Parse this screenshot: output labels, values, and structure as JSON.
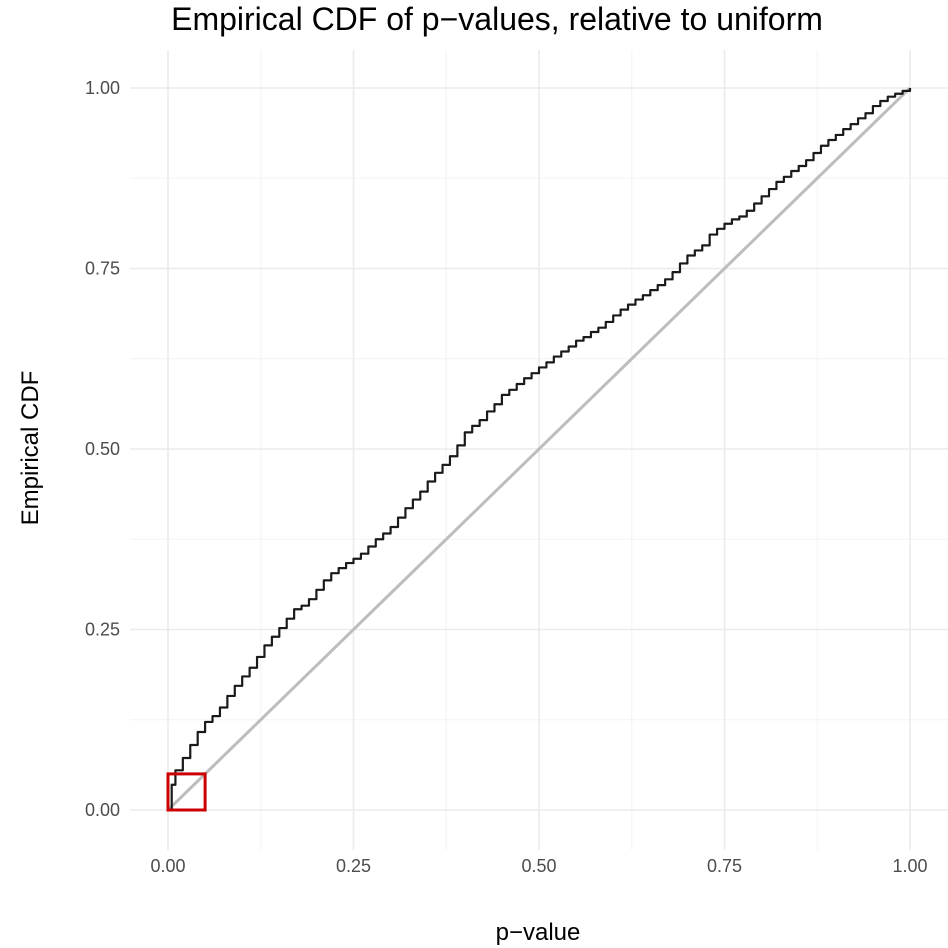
{
  "chart_data": {
    "type": "line",
    "title": "Empirical CDF of p−values, relative to uniform",
    "xlabel": "p−value",
    "ylabel": "Empirical CDF",
    "xlim": [
      0,
      1
    ],
    "ylim": [
      0,
      1
    ],
    "x_ticks": [
      0,
      0.25,
      0.5,
      0.75,
      1
    ],
    "x_tick_labels": [
      "0.00",
      "0.25",
      "0.50",
      "0.75",
      "1.00"
    ],
    "y_ticks": [
      0,
      0.25,
      0.5,
      0.75,
      1
    ],
    "y_tick_labels": [
      "0.00",
      "0.25",
      "0.50",
      "0.75",
      "1.00"
    ],
    "grid": true,
    "series": [
      {
        "color": "#1a1a1a",
        "x": [
          0,
          0.005,
          0.01,
          0.02,
          0.03,
          0.04,
          0.05,
          0.06,
          0.07,
          0.08,
          0.09,
          0.1,
          0.11,
          0.12,
          0.13,
          0.14,
          0.15,
          0.16,
          0.17,
          0.18,
          0.19,
          0.2,
          0.21,
          0.22,
          0.23,
          0.24,
          0.25,
          0.26,
          0.27,
          0.28,
          0.29,
          0.3,
          0.31,
          0.32,
          0.33,
          0.34,
          0.35,
          0.36,
          0.37,
          0.38,
          0.39,
          0.4,
          0.41,
          0.42,
          0.43,
          0.44,
          0.45,
          0.46,
          0.47,
          0.48,
          0.49,
          0.5,
          0.51,
          0.52,
          0.53,
          0.54,
          0.55,
          0.56,
          0.57,
          0.58,
          0.59,
          0.6,
          0.61,
          0.62,
          0.63,
          0.64,
          0.65,
          0.66,
          0.67,
          0.68,
          0.69,
          0.7,
          0.71,
          0.72,
          0.73,
          0.74,
          0.75,
          0.76,
          0.77,
          0.78,
          0.79,
          0.8,
          0.81,
          0.82,
          0.83,
          0.84,
          0.85,
          0.86,
          0.87,
          0.88,
          0.89,
          0.9,
          0.91,
          0.92,
          0.93,
          0.94,
          0.95,
          0.96,
          0.97,
          0.98,
          0.99,
          1.0
        ],
        "y": [
          0,
          0.035,
          0.055,
          0.072,
          0.09,
          0.108,
          0.122,
          0.13,
          0.142,
          0.158,
          0.172,
          0.185,
          0.197,
          0.212,
          0.228,
          0.24,
          0.252,
          0.265,
          0.278,
          0.283,
          0.292,
          0.305,
          0.318,
          0.328,
          0.335,
          0.342,
          0.348,
          0.355,
          0.365,
          0.375,
          0.383,
          0.392,
          0.405,
          0.418,
          0.43,
          0.441,
          0.455,
          0.467,
          0.478,
          0.49,
          0.505,
          0.523,
          0.532,
          0.54,
          0.552,
          0.562,
          0.575,
          0.582,
          0.59,
          0.598,
          0.605,
          0.613,
          0.62,
          0.628,
          0.635,
          0.642,
          0.65,
          0.655,
          0.662,
          0.668,
          0.676,
          0.685,
          0.693,
          0.7,
          0.707,
          0.713,
          0.72,
          0.727,
          0.735,
          0.745,
          0.757,
          0.768,
          0.775,
          0.782,
          0.797,
          0.805,
          0.812,
          0.818,
          0.822,
          0.83,
          0.84,
          0.85,
          0.86,
          0.87,
          0.877,
          0.885,
          0.892,
          0.9,
          0.91,
          0.92,
          0.928,
          0.935,
          0.943,
          0.95,
          0.958,
          0.965,
          0.975,
          0.982,
          0.988,
          0.992,
          0.996,
          1.0
        ]
      },
      {
        "color": "#bdbdbd",
        "x": [
          0,
          1
        ],
        "y": [
          0,
          1
        ]
      }
    ],
    "highlight_box": {
      "x": [
        0,
        0.05
      ],
      "y": [
        0,
        0.05
      ],
      "color": "#cc0000"
    }
  }
}
